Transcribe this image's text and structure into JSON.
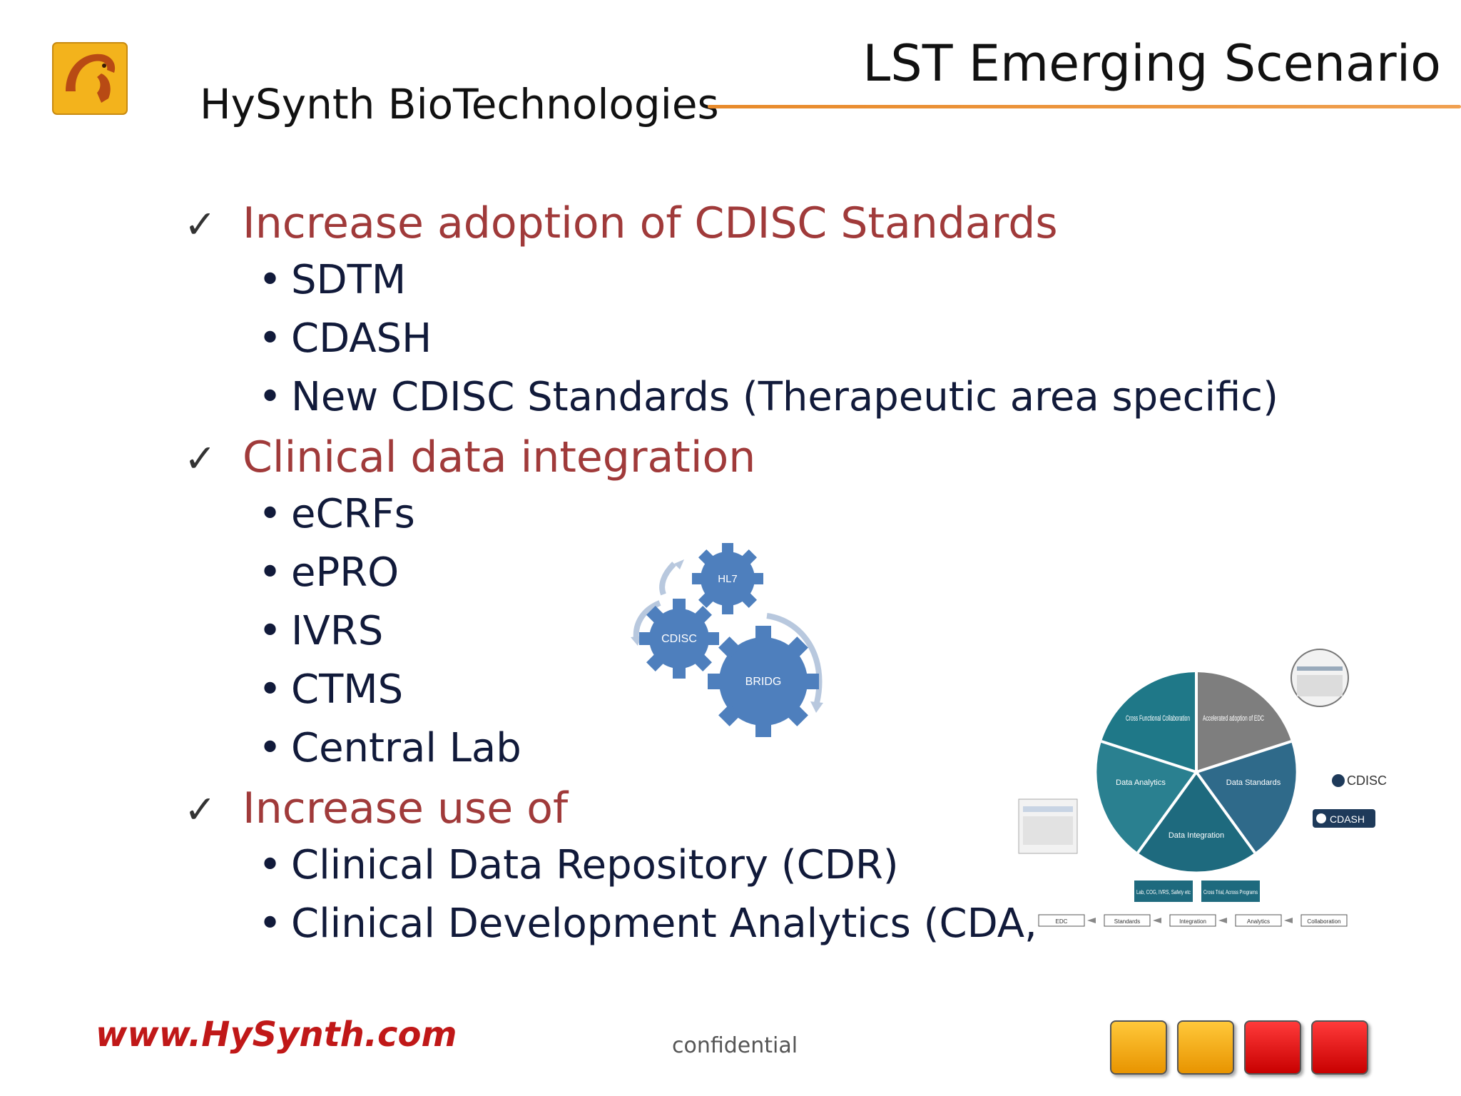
{
  "header": {
    "company": "HySynth BioTechnologies",
    "title": "LST Emerging Scenario"
  },
  "sections": [
    {
      "heading": "Increase adoption of CDISC Standards",
      "items": [
        "SDTM",
        "CDASH",
        "New CDISC Standards (Therapeutic area specific)"
      ]
    },
    {
      "heading": "Clinical data integration",
      "items": [
        "eCRFs",
        "ePRO",
        "IVRS",
        "CTMS",
        "Central Lab"
      ]
    },
    {
      "heading": "Increase use of",
      "items": [
        "Clinical Data Repository (CDR)",
        "Clinical Development Analytics (CDA,"
      ]
    }
  ],
  "gears": {
    "labels": [
      "HL7",
      "CDISC",
      "BRIDG"
    ]
  },
  "cycle": {
    "segments": [
      "Cross Functional Collaboration",
      "Accelerated adoption of EDC",
      "Data Standards",
      "Data Integration",
      "Data Analytics"
    ],
    "sub_boxes": [
      "Lab, COG, IVRS, Safety etc",
      "Cross Trial, Across Programs"
    ],
    "flow": [
      "EDC",
      "Standards",
      "Integration",
      "Analytics",
      "Collaboration"
    ],
    "logos": [
      "CDISC",
      "CDASH"
    ]
  },
  "footer": {
    "url": "www.HySynth.com",
    "confidential": "confidential"
  },
  "colors": {
    "heading": "#a03a3a",
    "accent_line": "#e88a2a",
    "gear": "#4e7fbd",
    "squares": [
      "#f0a000",
      "#f0a000",
      "#e01010",
      "#e01010"
    ]
  }
}
